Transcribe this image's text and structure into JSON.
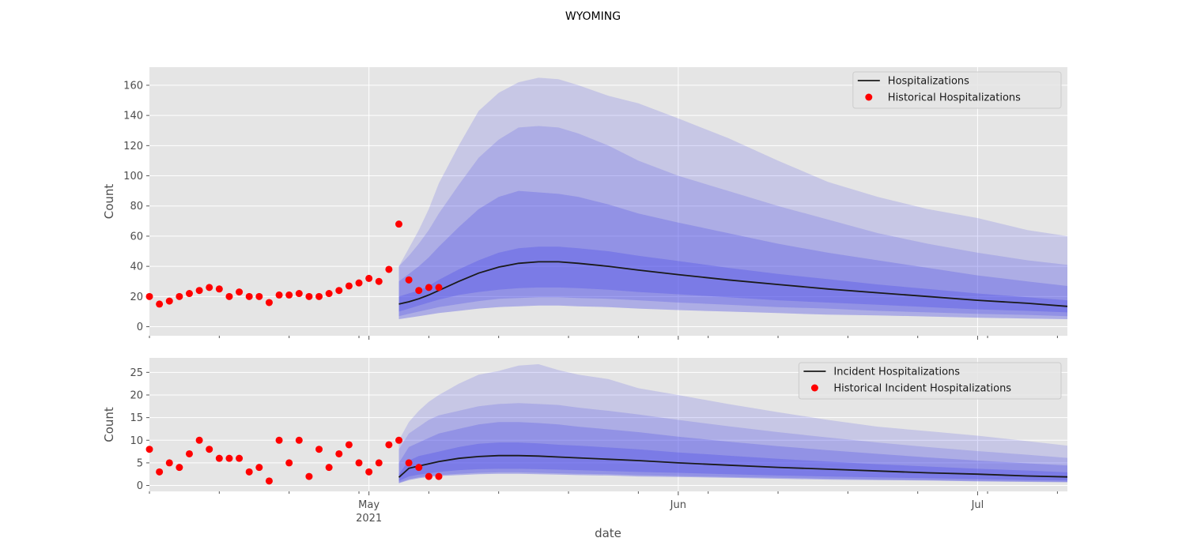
{
  "figure": {
    "suptitle": "WYOMING",
    "xlabel": "date"
  },
  "chart_data": [
    {
      "type": "line",
      "panel": "top",
      "ylabel": "Count",
      "xlim": [
        "2021-04-09",
        "2021-07-10"
      ],
      "ylim": [
        -6,
        172
      ],
      "yticks": [
        0,
        20,
        40,
        60,
        80,
        100,
        120,
        140,
        160
      ],
      "grid": true,
      "legend_position": "upper right",
      "legend": [
        "Hospitalizations",
        "Historical Hospitalizations"
      ],
      "historical": {
        "name": "Historical Hospitalizations",
        "x": [
          "2021-04-09",
          "2021-04-10",
          "2021-04-11",
          "2021-04-12",
          "2021-04-13",
          "2021-04-14",
          "2021-04-15",
          "2021-04-16",
          "2021-04-17",
          "2021-04-18",
          "2021-04-19",
          "2021-04-20",
          "2021-04-21",
          "2021-04-22",
          "2021-04-23",
          "2021-04-24",
          "2021-04-25",
          "2021-04-26",
          "2021-04-27",
          "2021-04-28",
          "2021-04-29",
          "2021-04-30",
          "2021-05-01",
          "2021-05-02",
          "2021-05-03",
          "2021-05-04",
          "2021-05-05",
          "2021-05-06",
          "2021-05-07",
          "2021-05-08",
          "2021-05-09"
        ],
        "y": [
          20,
          15,
          17,
          20,
          22,
          24,
          26,
          25,
          20,
          23,
          20,
          20,
          16,
          21,
          21,
          22,
          20,
          20,
          22,
          24,
          27,
          29,
          32,
          30,
          38,
          68,
          31,
          24,
          26,
          26,
          null
        ]
      },
      "projection": {
        "name": "Hospitalizations",
        "x": [
          "2021-05-04",
          "2021-05-05",
          "2021-05-06",
          "2021-05-07",
          "2021-05-08",
          "2021-05-10",
          "2021-05-12",
          "2021-05-14",
          "2021-05-16",
          "2021-05-18",
          "2021-05-20",
          "2021-05-22",
          "2021-05-25",
          "2021-05-28",
          "2021-06-01",
          "2021-06-06",
          "2021-06-11",
          "2021-06-16",
          "2021-06-21",
          "2021-06-26",
          "2021-07-01",
          "2021-07-06",
          "2021-07-10"
        ],
        "median": [
          15,
          16.5,
          18.5,
          21,
          24,
          30,
          35.5,
          39.5,
          42,
          43,
          43,
          42,
          40,
          37.5,
          34.5,
          31,
          28,
          25,
          22.5,
          20,
          17.5,
          15.5,
          13.5
        ],
        "bands": [
          [
            10,
            12,
            14,
            16,
            18,
            21,
            23,
            24.5,
            25.5,
            26,
            26,
            25.5,
            24.5,
            23,
            21.5,
            19.5,
            17.5,
            16,
            14.5,
            13,
            11.5,
            10.5,
            9.5,
            20,
            22,
            24,
            27,
            31,
            38,
            44,
            49,
            52,
            53,
            53,
            52,
            50,
            47,
            43.5,
            39,
            35,
            31.5,
            28,
            25,
            22,
            19.5,
            17.5
          ],
          [
            7,
            8.5,
            10,
            11.5,
            13,
            15,
            17,
            18.5,
            19,
            19.5,
            19.5,
            19,
            18.5,
            17.5,
            16,
            14.5,
            13,
            12,
            10.5,
            9.5,
            8.5,
            7.8,
            7,
            30,
            35,
            40,
            46,
            53,
            66,
            78,
            86,
            90,
            89,
            88,
            86,
            81,
            75,
            69,
            62,
            55,
            49,
            44,
            39,
            34,
            30,
            27
          ],
          [
            5,
            6,
            7,
            8,
            9,
            10.5,
            12,
            13,
            13.5,
            14,
            14,
            13.5,
            13,
            12,
            11,
            10,
            9,
            8,
            7.5,
            6.8,
            6,
            5.4,
            5,
            40,
            47,
            55,
            64,
            75,
            94,
            112,
            124,
            132,
            133,
            132,
            128,
            120,
            110,
            100,
            90,
            80,
            71,
            62,
            55,
            49,
            44,
            41
          ],
          [
            5,
            6,
            7,
            8,
            9,
            10.5,
            12,
            13,
            13.5,
            14,
            14,
            13.5,
            13,
            12,
            11,
            10,
            9,
            8,
            7.5,
            6.8,
            6,
            5.4,
            5,
            40,
            52,
            64,
            78,
            95,
            120,
            143,
            155,
            162,
            165,
            164,
            160,
            153,
            148,
            138,
            125,
            110,
            96,
            86,
            78,
            72,
            64,
            60
          ]
        ]
      }
    },
    {
      "type": "line",
      "panel": "bottom",
      "ylabel": "Count",
      "xlim": [
        "2021-04-09",
        "2021-07-10"
      ],
      "ylim": [
        -1.3,
        28.2
      ],
      "yticks": [
        0,
        5,
        10,
        15,
        20,
        25
      ],
      "grid": true,
      "legend_position": "upper right",
      "legend": [
        "Incident Hospitalizations",
        "Historical Incident Hospitalizations"
      ],
      "historical": {
        "name": "Historical Incident Hospitalizations",
        "x": [
          "2021-04-09",
          "2021-04-10",
          "2021-04-11",
          "2021-04-12",
          "2021-04-13",
          "2021-04-14",
          "2021-04-15",
          "2021-04-16",
          "2021-04-17",
          "2021-04-18",
          "2021-04-19",
          "2021-04-20",
          "2021-04-21",
          "2021-04-22",
          "2021-04-23",
          "2021-04-24",
          "2021-04-25",
          "2021-04-26",
          "2021-04-27",
          "2021-04-28",
          "2021-04-29",
          "2021-04-30",
          "2021-05-01",
          "2021-05-02",
          "2021-05-03",
          "2021-05-04",
          "2021-05-05",
          "2021-05-06",
          "2021-05-07",
          "2021-05-08"
        ],
        "y": [
          8,
          3,
          5,
          4,
          7,
          10,
          8,
          6,
          6,
          6,
          3,
          4,
          1,
          10,
          5,
          10,
          2,
          8,
          4,
          7,
          9,
          5,
          3,
          5,
          9,
          10,
          5,
          4,
          2,
          2
        ]
      },
      "projection": {
        "name": "Incident Hospitalizations",
        "x": [
          "2021-05-04",
          "2021-05-05",
          "2021-05-06",
          "2021-05-07",
          "2021-05-08",
          "2021-05-10",
          "2021-05-12",
          "2021-05-14",
          "2021-05-16",
          "2021-05-18",
          "2021-05-20",
          "2021-05-22",
          "2021-05-25",
          "2021-05-28",
          "2021-06-01",
          "2021-06-06",
          "2021-06-11",
          "2021-06-16",
          "2021-06-21",
          "2021-06-26",
          "2021-07-01",
          "2021-07-06",
          "2021-07-10"
        ],
        "median": [
          1.8,
          3.8,
          4.3,
          4.8,
          5.3,
          6,
          6.4,
          6.6,
          6.6,
          6.5,
          6.3,
          6.1,
          5.8,
          5.5,
          5,
          4.5,
          4,
          3.6,
          3.2,
          2.8,
          2.5,
          2.1,
          1.9
        ],
        "bands": [
          [
            1,
            2,
            2.4,
            2.7,
            3,
            3.4,
            3.6,
            3.7,
            3.7,
            3.6,
            3.5,
            3.4,
            3.2,
            3,
            2.8,
            2.5,
            2.2,
            2,
            1.8,
            1.6,
            1.4,
            1.2,
            1.1,
            2.5,
            5.5,
            6.5,
            7,
            7.5,
            8.5,
            9.2,
            9.5,
            9.5,
            9.3,
            9,
            8.8,
            8.4,
            8,
            7.3,
            6.6,
            5.9,
            5.3,
            4.7,
            4.2,
            3.7,
            3.3,
            2.9
          ],
          [
            0.6,
            1.4,
            1.8,
            2.1,
            2.3,
            2.6,
            2.8,
            2.9,
            2.9,
            2.8,
            2.7,
            2.6,
            2.5,
            2.3,
            2.1,
            1.9,
            1.7,
            1.5,
            1.3,
            1.2,
            1,
            0.9,
            0.8,
            5,
            8.5,
            9.5,
            10.5,
            11.5,
            12.5,
            13.5,
            14,
            14,
            13.8,
            13.5,
            13,
            12.4,
            11.8,
            10.8,
            9.7,
            8.7,
            7.8,
            7,
            6.2,
            5.5,
            4.9,
            4.4
          ],
          [
            0.5,
            1.2,
            1.6,
            1.9,
            2.1,
            2.3,
            2.5,
            2.6,
            2.6,
            2.5,
            2.4,
            2.3,
            2.2,
            2,
            1.9,
            1.7,
            1.5,
            1.3,
            1.2,
            1.1,
            0.9,
            0.8,
            0.7,
            8,
            11.5,
            13,
            14.5,
            15.5,
            16.5,
            17.5,
            18,
            18.2,
            18,
            17.8,
            17.2,
            16.5,
            15.7,
            14.5,
            13.1,
            11.8,
            10.6,
            9.5,
            8.5,
            7.6,
            6.8,
            6.1
          ],
          [
            0.5,
            1.2,
            1.6,
            1.9,
            2.1,
            2.3,
            2.5,
            2.6,
            2.6,
            2.5,
            2.4,
            2.3,
            2.2,
            2,
            1.9,
            1.7,
            1.5,
            1.3,
            1.2,
            1.1,
            0.9,
            0.8,
            0.7,
            10,
            14,
            16.5,
            18.5,
            20,
            22.5,
            24.5,
            25.3,
            26.5,
            26.8,
            25.5,
            24.5,
            23.5,
            21.5,
            20,
            18,
            16.2,
            14.5,
            13,
            12,
            11,
            9.8,
            8.8
          ]
        ]
      }
    }
  ],
  "xaxis": {
    "ticks": [
      {
        "date": "2021-05-01",
        "label": "May",
        "sub": "2021"
      },
      {
        "date": "2021-06-01",
        "label": "Jun",
        "sub": ""
      },
      {
        "date": "2021-07-01",
        "label": "Jul",
        "sub": ""
      }
    ]
  },
  "colors": {
    "axes_bg": "#e5e5e5",
    "grid": "#ffffff",
    "band": "#4444e8",
    "median": "#1a1a1a",
    "historical": "#ff0000"
  }
}
